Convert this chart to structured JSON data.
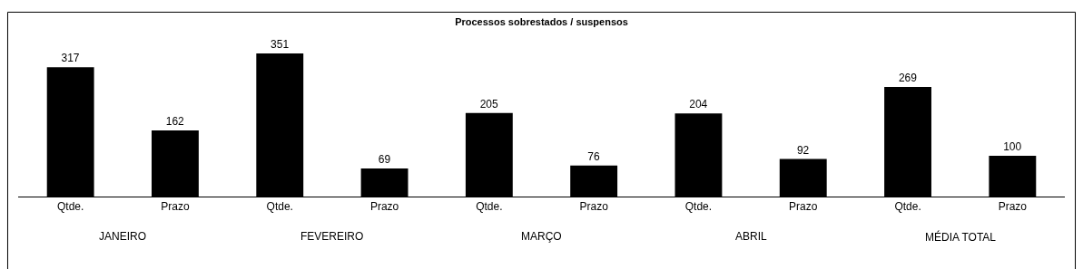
{
  "chart_data": {
    "type": "bar",
    "title": "Processos sobrestados / suspensos",
    "categories": [
      "Qtde.",
      "Prazo",
      "Qtde.",
      "Prazo",
      "Qtde.",
      "Prazo",
      "Qtde.",
      "Prazo",
      "Qtde.",
      "Prazo"
    ],
    "values": [
      317,
      162,
      351,
      69,
      205,
      76,
      204,
      92,
      269,
      100
    ],
    "color": "#000000",
    "data_labels": true,
    "annotations": [
      "JANEIRO",
      "FEVEREIRO",
      "MARÇO",
      "ABRIL",
      "MÉDIA TOTAL"
    ]
  }
}
